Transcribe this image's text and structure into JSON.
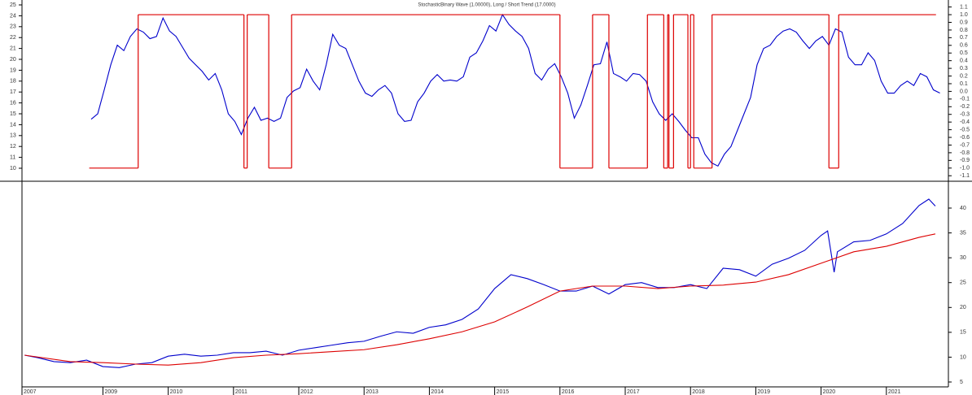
{
  "chart_data": [
    {
      "type": "line",
      "title": "StochasticBinary Wave (1.00000), Long / Short Trend (17.0000)",
      "xlim": [
        2007.76,
        2021.95
      ],
      "ylim": [
        9.03,
        25.3
      ],
      "yticks": [
        10,
        11,
        12,
        13,
        14,
        15,
        16,
        17,
        18,
        19,
        20,
        21,
        22,
        23,
        24,
        25
      ],
      "yaxis_side": "left",
      "y2lim": [
        -1.14,
        1.17
      ],
      "y2ticks": [
        {
          "value": -1.1,
          "label": "-1.1"
        },
        {
          "value": -1,
          "label": "-1.0"
        },
        -0.9,
        -0.8,
        -0.7,
        -0.6,
        -0.5,
        -0.4,
        -0.3,
        -0.2,
        -0.1,
        {
          "value": 0,
          "label": "0.0"
        },
        0.1,
        0.2,
        0.3,
        0.4,
        0.5,
        0.6,
        0.7,
        0.8,
        0.9,
        {
          "value": 1,
          "label": "1.0"
        },
        1.1
      ],
      "series": [
        {
          "color": "#0000cc",
          "x": [
            2008.82,
            2008.92,
            2009.02,
            2009.12,
            2009.22,
            2009.32,
            2009.42,
            2009.52,
            2009.62,
            2009.72,
            2009.82,
            2009.92,
            2010.02,
            2010.12,
            2010.22,
            2010.32,
            2010.42,
            2010.52,
            2010.62,
            2010.72,
            2010.82,
            2010.92,
            2011.02,
            2011.12,
            2011.22,
            2011.32,
            2011.42,
            2011.52,
            2011.62,
            2011.72,
            2011.82,
            2011.92,
            2012.02,
            2012.12,
            2012.22,
            2012.32,
            2012.42,
            2012.52,
            2012.62,
            2012.72,
            2012.82,
            2012.92,
            2013.02,
            2013.12,
            2013.22,
            2013.32,
            2013.42,
            2013.52,
            2013.62,
            2013.72,
            2013.82,
            2013.92,
            2014.02,
            2014.12,
            2014.22,
            2014.32,
            2014.42,
            2014.52,
            2014.62,
            2014.72,
            2014.82,
            2014.92,
            2015.02,
            2015.12,
            2015.22,
            2015.32,
            2015.42,
            2015.52,
            2015.62,
            2015.72,
            2015.82,
            2015.92,
            2016.02,
            2016.12,
            2016.22,
            2016.32,
            2016.42,
            2016.52,
            2016.62,
            2016.72,
            2016.82,
            2016.92,
            2017.02,
            2017.12,
            2017.22,
            2017.32,
            2017.42,
            2017.52,
            2017.62,
            2017.72,
            2017.82,
            2017.92,
            2018.02,
            2018.12,
            2018.22,
            2018.32,
            2018.42,
            2018.52,
            2018.62,
            2018.72,
            2018.82,
            2018.92,
            2019.02,
            2019.12,
            2019.22,
            2019.32,
            2019.42,
            2019.52,
            2019.62,
            2019.72,
            2019.82,
            2019.92,
            2020.02,
            2020.12,
            2020.22,
            2020.32,
            2020.42,
            2020.52,
            2020.62,
            2020.72,
            2020.82,
            2020.92,
            2021.02,
            2021.12,
            2021.22,
            2021.32,
            2021.42,
            2021.52,
            2021.62,
            2021.72,
            2021.82
          ],
          "values": [
            14.5,
            15.0,
            17.2,
            19.5,
            21.3,
            20.8,
            22.1,
            22.8,
            22.5,
            21.9,
            22.1,
            23.8,
            22.6,
            22.1,
            21.1,
            20.1,
            19.5,
            18.9,
            18.1,
            18.7,
            17.2,
            15.0,
            14.3,
            13.1,
            14.6,
            15.6,
            14.4,
            14.6,
            14.3,
            14.6,
            16.5,
            17.1,
            17.4,
            19.1,
            18.0,
            17.2,
            19.5,
            22.3,
            21.3,
            21.0,
            19.5,
            18.0,
            16.9,
            16.6,
            17.2,
            17.6,
            16.9,
            15.0,
            14.3,
            14.4,
            16.1,
            16.9,
            18.0,
            18.6,
            18.0,
            18.1,
            18.0,
            18.4,
            20.2,
            20.6,
            21.7,
            23.1,
            22.6,
            24.1,
            23.2,
            22.6,
            22.1,
            21.0,
            18.7,
            18.1,
            19.1,
            19.6,
            18.4,
            16.9,
            14.6,
            15.8,
            17.6,
            19.5,
            19.6,
            21.6,
            18.7,
            18.4,
            18.0,
            18.7,
            18.6,
            18.0,
            16.1,
            15.0,
            14.4,
            15.0,
            14.3,
            13.5,
            12.8,
            12.8,
            11.3,
            10.5,
            10.2,
            11.3,
            12.0,
            13.5,
            15.0,
            16.5,
            19.5,
            21.0,
            21.3,
            22.1,
            22.6,
            22.8,
            22.5,
            21.7,
            21.0,
            21.7,
            22.1,
            21.3,
            22.8,
            22.5,
            20.2,
            19.5,
            19.5,
            20.6,
            19.9,
            18.0,
            16.9,
            16.9,
            17.6,
            18.0,
            17.6,
            18.7,
            18.4,
            17.2,
            16.9
          ]
        },
        {
          "color": "#dd0000",
          "axis": "y2",
          "drawstyle": "steps-post",
          "x": [
            2008.79,
            2009.54,
            2011.16,
            2011.21,
            2011.54,
            2011.89,
            2016.0,
            2016.5,
            2016.75,
            2017.34,
            2017.59,
            2017.65,
            2017.67,
            2017.74,
            2017.96,
            2018.0,
            2018.05,
            2018.33,
            2020.12,
            2020.27,
            2021.76
          ],
          "values": [
            -1,
            1,
            -1,
            1,
            -1,
            1,
            -1,
            1,
            -1,
            1,
            -1,
            1,
            -1,
            1,
            -1,
            1,
            -1,
            1,
            -1,
            1,
            1
          ]
        }
      ]
    },
    {
      "type": "line",
      "xlim": [
        2007.76,
        2021.95
      ],
      "xticks": [
        {
          "value": 2007.76,
          "label": "2007"
        },
        2009,
        2010,
        2011,
        2012,
        2013,
        2014,
        2015,
        2016,
        2017,
        2018,
        2019,
        2020,
        2021
      ],
      "ylim": [
        4.02,
        45.07
      ],
      "yticks": [
        5,
        10,
        15,
        20,
        25,
        30,
        35,
        40
      ],
      "yaxis_side": "right",
      "series": [
        {
          "color": "#0000cc",
          "x": [
            2007.8,
            2008,
            2008.25,
            2008.5,
            2008.75,
            2009,
            2009.25,
            2009.5,
            2009.75,
            2010,
            2010.25,
            2010.5,
            2010.75,
            2011,
            2011.25,
            2011.5,
            2011.75,
            2012,
            2012.25,
            2012.5,
            2012.75,
            2013,
            2013.25,
            2013.5,
            2013.75,
            2014,
            2014.25,
            2014.5,
            2014.75,
            2015,
            2015.25,
            2015.5,
            2015.75,
            2016,
            2016.25,
            2016.5,
            2016.75,
            2017,
            2017.25,
            2017.5,
            2017.75,
            2018,
            2018.25,
            2018.5,
            2018.75,
            2019,
            2019.25,
            2019.5,
            2019.75,
            2020,
            2020.1,
            2020.2,
            2020.25,
            2020.5,
            2020.75,
            2021,
            2021.25,
            2021.5,
            2021.65,
            2021.75
          ],
          "values": [
            10.4,
            9.9,
            9.1,
            8.9,
            9.4,
            8.1,
            7.9,
            8.6,
            8.9,
            10.2,
            10.6,
            10.2,
            10.4,
            10.9,
            10.9,
            11.2,
            10.4,
            11.4,
            11.9,
            12.4,
            12.9,
            13.2,
            14.2,
            15.1,
            14.8,
            16.0,
            16.5,
            17.6,
            19.7,
            23.8,
            26.6,
            25.8,
            24.6,
            23.3,
            23.3,
            24.3,
            22.7,
            24.6,
            25.0,
            24.0,
            24.0,
            24.6,
            23.8,
            27.9,
            27.6,
            26.3,
            28.7,
            29.9,
            31.5,
            34.5,
            35.4,
            27.1,
            31.2,
            33.2,
            33.5,
            34.8,
            36.9,
            40.5,
            41.8,
            40.4
          ]
        },
        {
          "color": "#dd0000",
          "x": [
            2007.8,
            2008.5,
            2009,
            2009.5,
            2010,
            2010.5,
            2011,
            2011.5,
            2012,
            2012.5,
            2013,
            2013.5,
            2014,
            2014.5,
            2015,
            2015.5,
            2016,
            2016.5,
            2017,
            2017.5,
            2018,
            2018.5,
            2019,
            2019.5,
            2020,
            2020.5,
            2021,
            2021.5,
            2021.75
          ],
          "values": [
            10.4,
            9.1,
            8.9,
            8.6,
            8.4,
            8.9,
            9.9,
            10.4,
            10.7,
            11.1,
            11.5,
            12.5,
            13.7,
            15.1,
            17.1,
            20.1,
            23.3,
            24.3,
            24.3,
            23.8,
            24.3,
            24.5,
            25.1,
            26.6,
            28.9,
            31.2,
            32.3,
            34.1,
            34.8
          ]
        }
      ]
    }
  ]
}
